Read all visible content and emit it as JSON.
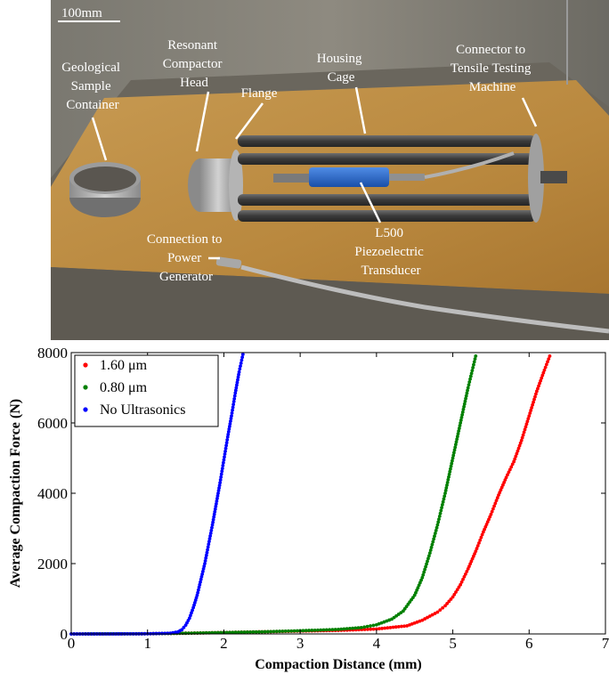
{
  "photo": {
    "scale_bar_label": "100mm",
    "labels": [
      {
        "id": "sample-container",
        "lines": [
          "Geological",
          "Sample",
          "Container"
        ]
      },
      {
        "id": "compactor-head",
        "lines": [
          "Resonant",
          "Compactor",
          "Head"
        ]
      },
      {
        "id": "flange",
        "lines": [
          "Flange"
        ]
      },
      {
        "id": "housing-cage",
        "lines": [
          "Housing",
          "Cage"
        ]
      },
      {
        "id": "tensile-connector",
        "lines": [
          "Connector to",
          "Tensile Testing",
          "Machine"
        ]
      },
      {
        "id": "power-connection",
        "lines": [
          "Connection to",
          "Power",
          "Generator"
        ]
      },
      {
        "id": "transducer",
        "lines": [
          "L500",
          "Piezoelectric",
          "Transducer"
        ]
      }
    ]
  },
  "chart_data": {
    "type": "scatter",
    "xlabel": "Compaction Distance (mm)",
    "ylabel": "Average Compaction Force (N)",
    "xlim": [
      0,
      7
    ],
    "ylim": [
      0,
      8000
    ],
    "xticks": [
      "0",
      "1",
      "2",
      "3",
      "4",
      "5",
      "6",
      "7"
    ],
    "yticks": [
      "0",
      "2000",
      "4000",
      "6000",
      "8000"
    ],
    "legend_position": "top-left",
    "series": [
      {
        "name": "1.60 μm",
        "color": "#ff0000",
        "x": [
          0,
          1,
          1.5,
          2,
          2.5,
          3,
          3.5,
          4,
          4.4,
          4.6,
          4.8,
          4.9,
          5.0,
          5.1,
          5.2,
          5.3,
          5.4,
          5.5,
          5.6,
          5.7,
          5.8,
          5.9,
          6.0,
          6.1,
          6.2,
          6.27
        ],
        "y": [
          0,
          5,
          20,
          40,
          60,
          80,
          100,
          140,
          230,
          390,
          620,
          800,
          1050,
          1400,
          1850,
          2350,
          2900,
          3400,
          3950,
          4450,
          4900,
          5500,
          6200,
          6900,
          7500,
          7900
        ]
      },
      {
        "name": "0.80 μm",
        "color": "#008000",
        "x": [
          0,
          1,
          1.5,
          2,
          2.5,
          3,
          3.5,
          3.8,
          4.0,
          4.2,
          4.35,
          4.5,
          4.6,
          4.7,
          4.8,
          4.9,
          5.0,
          5.1,
          5.2,
          5.3
        ],
        "y": [
          0,
          5,
          20,
          40,
          60,
          90,
          130,
          180,
          260,
          420,
          650,
          1100,
          1600,
          2300,
          3100,
          4000,
          5000,
          6000,
          7000,
          7900
        ]
      },
      {
        "name": "No Ultrasonics",
        "color": "#0000ff",
        "x": [
          0,
          0.5,
          1.0,
          1.3,
          1.4,
          1.45,
          1.5,
          1.55,
          1.6,
          1.65,
          1.7,
          1.75,
          1.8,
          1.85,
          1.9,
          1.95,
          2.0,
          2.05,
          2.1,
          2.15,
          2.2,
          2.25
        ],
        "y": [
          0,
          0,
          5,
          20,
          60,
          120,
          250,
          450,
          750,
          1100,
          1550,
          2000,
          2550,
          3100,
          3700,
          4300,
          4950,
          5600,
          6200,
          6850,
          7450,
          7950
        ]
      }
    ]
  }
}
